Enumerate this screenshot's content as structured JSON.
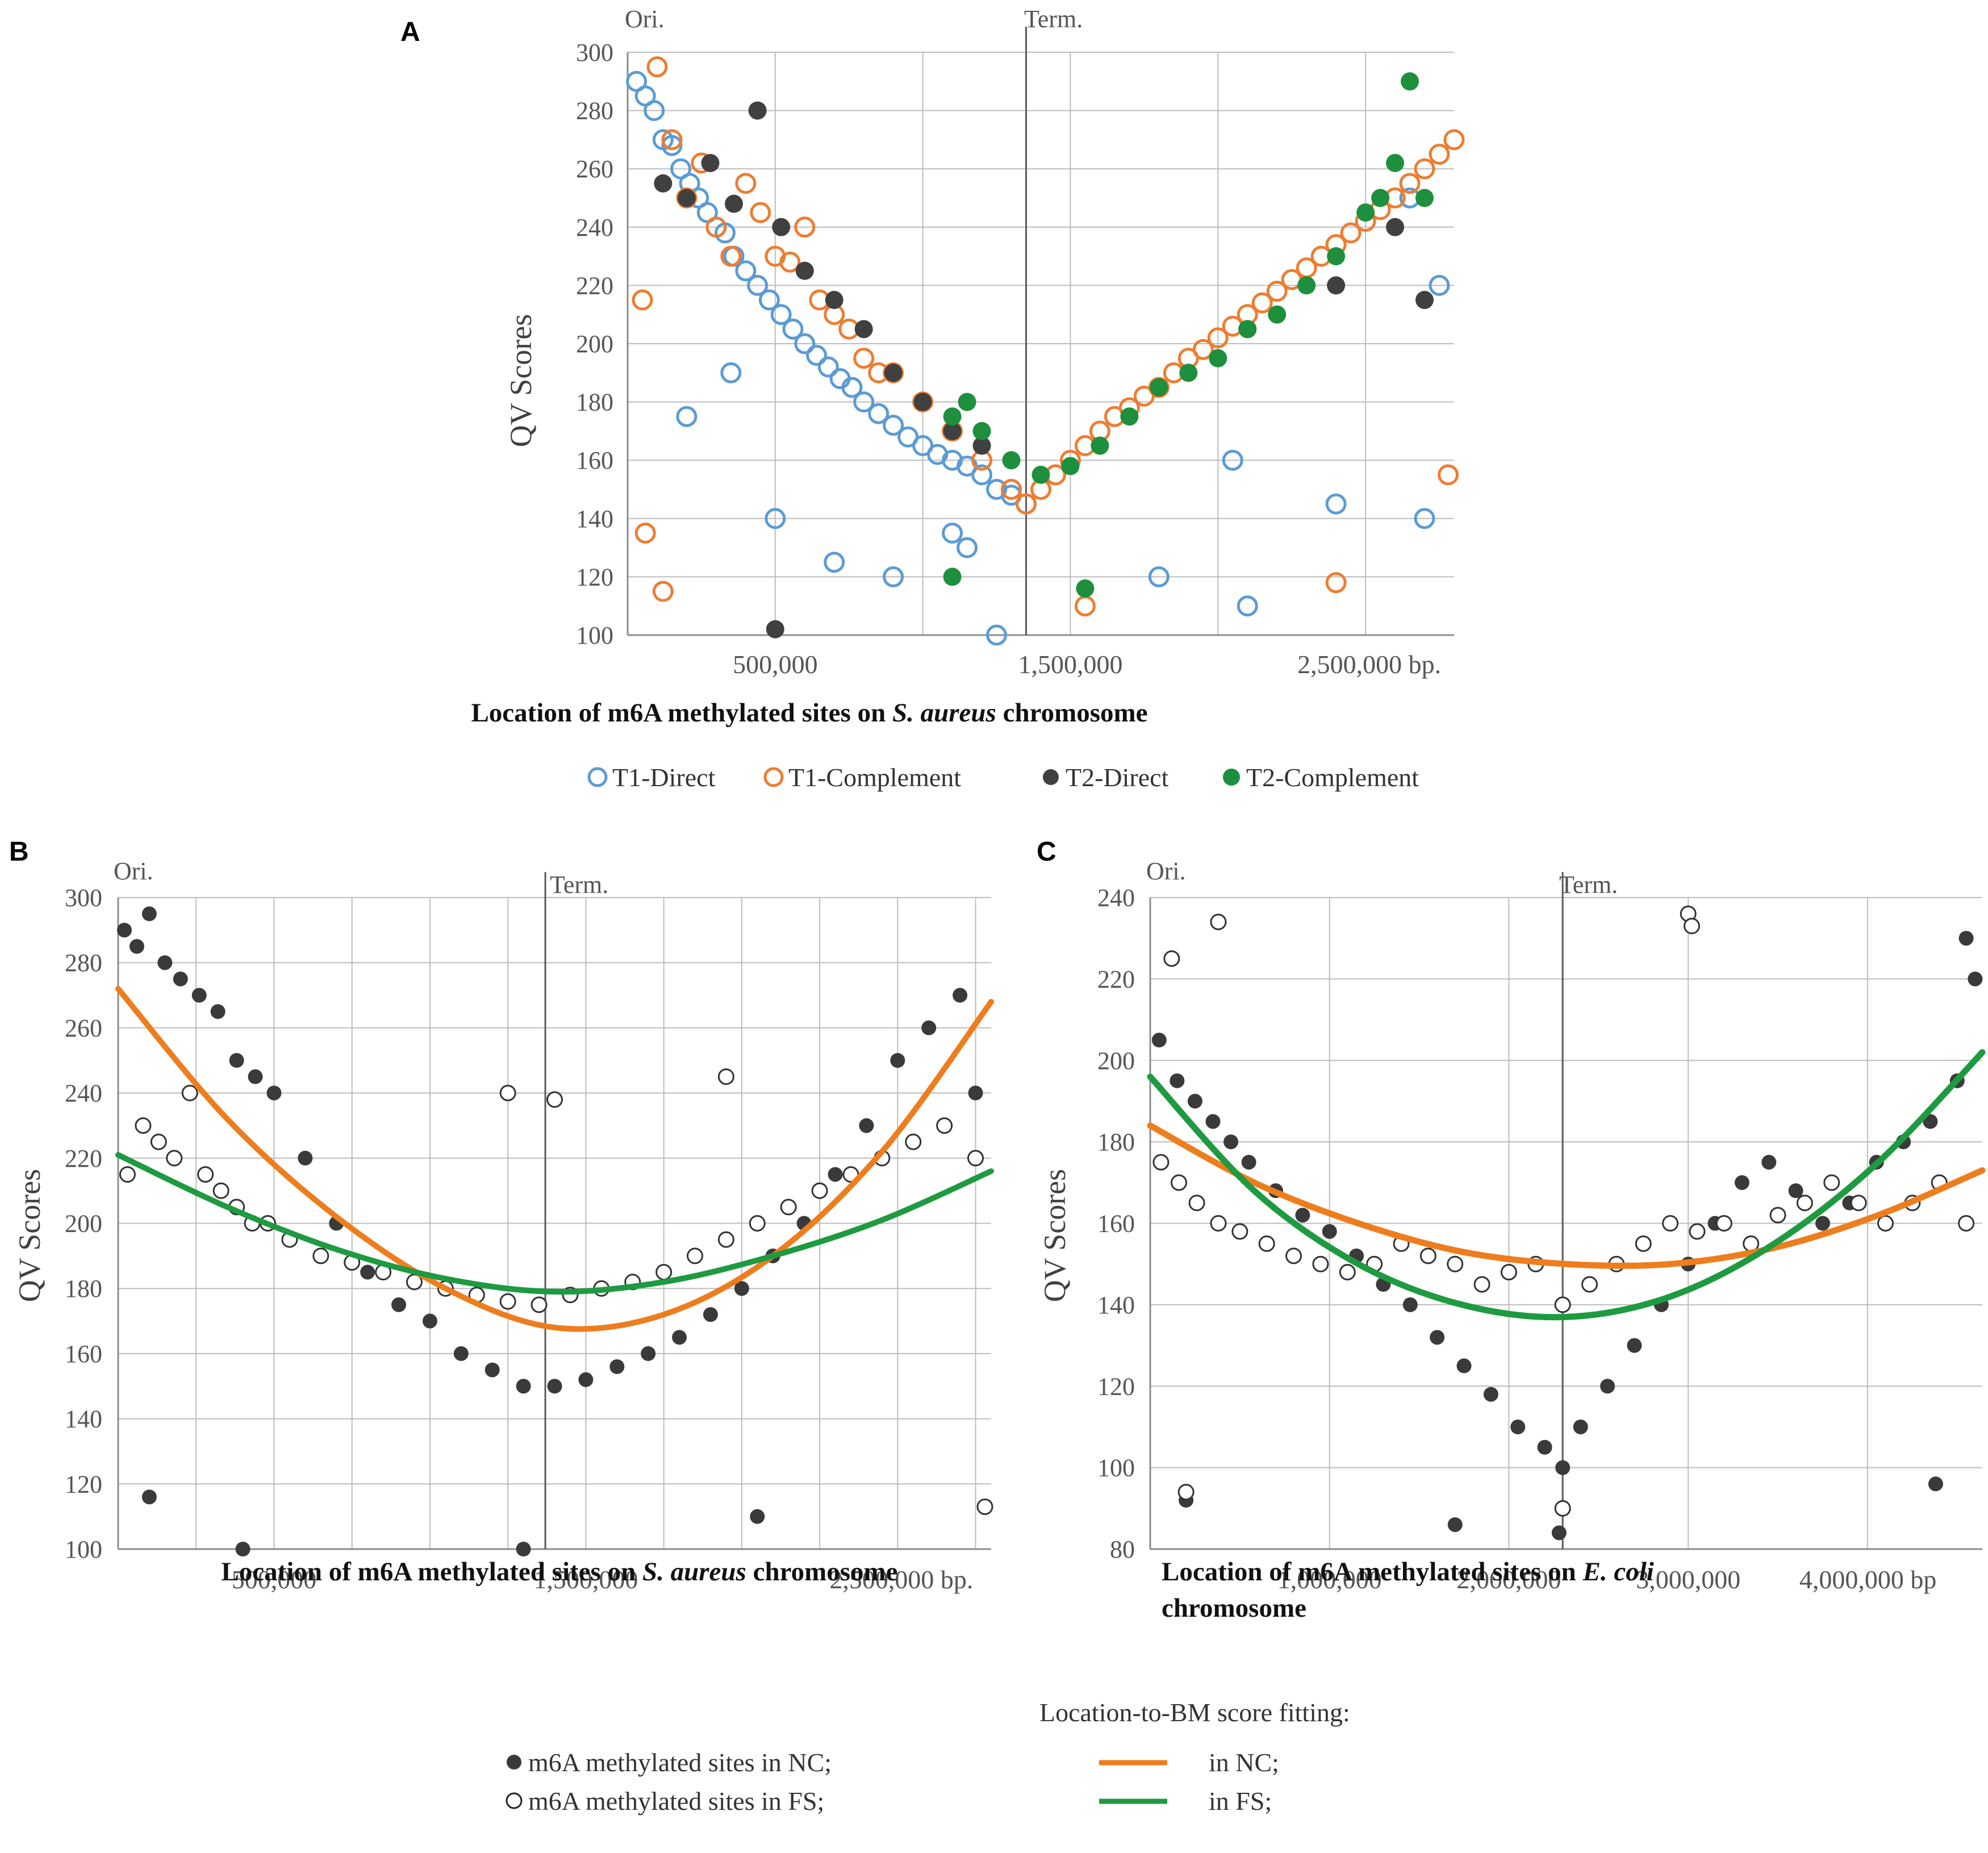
{
  "chart_data": [
    {
      "id": "A",
      "type": "scatter",
      "panel_label": "A",
      "ylabel": "QV Scores",
      "xlabel_parts": [
        "Location of m6A methylated sites on ",
        "S. aureus",
        " chromosome"
      ],
      "ylim": [
        100,
        300
      ],
      "yticks": [
        "100",
        "120",
        "140",
        "160",
        "180",
        "200",
        "220",
        "240",
        "260",
        "280",
        "300"
      ],
      "xlim": [
        0,
        2800000
      ],
      "xtick_values": [
        500000,
        1500000,
        2500000
      ],
      "xtick_labels": [
        "500,000",
        "1,500,000",
        "2,500,000 bp."
      ],
      "x_grid_step": 500000,
      "ori_label": "Ori.",
      "term_label": "Term.",
      "term_x": 1350000,
      "legend": [
        {
          "name": "T1-Direct",
          "style": "open",
          "color": "#5b9bd5"
        },
        {
          "name": "T1-Complement",
          "style": "open",
          "color": "#ed7d31"
        },
        {
          "name": "T2-Direct",
          "style": "filled",
          "color": "#404040"
        },
        {
          "name": "T2-Complement",
          "style": "filled",
          "color": "#1e8f3c"
        }
      ],
      "series": [
        {
          "name": "T1-Direct",
          "style": "open",
          "color": "#5b9bd5",
          "x": [
            30000,
            60000,
            90000,
            120000,
            150000,
            180000,
            210000,
            240000,
            270000,
            300000,
            330000,
            360000,
            400000,
            440000,
            480000,
            520000,
            560000,
            600000,
            640000,
            680000,
            720000,
            760000,
            800000,
            850000,
            900000,
            950000,
            1000000,
            1050000,
            1100000,
            1150000,
            1200000,
            1250000,
            1300000,
            1350000,
            200000,
            350000,
            500000,
            700000,
            900000,
            1100000,
            1250000,
            1800000,
            2100000,
            2400000,
            2700000,
            2750000,
            2650000,
            2050000,
            1450000,
            1150000
          ],
          "y": [
            290,
            285,
            280,
            270,
            268,
            260,
            255,
            250,
            245,
            240,
            238,
            230,
            225,
            220,
            215,
            210,
            205,
            200,
            196,
            192,
            188,
            185,
            180,
            176,
            172,
            168,
            165,
            162,
            160,
            158,
            155,
            150,
            148,
            145,
            175,
            190,
            140,
            125,
            120,
            135,
            100,
            120,
            110,
            145,
            140,
            220,
            250,
            160,
            155,
            130
          ]
        },
        {
          "name": "T1-Complement",
          "style": "open",
          "color": "#ed7d31",
          "x": [
            50000,
            100000,
            150000,
            200000,
            250000,
            300000,
            350000,
            400000,
            450000,
            500000,
            550000,
            600000,
            650000,
            700000,
            750000,
            800000,
            850000,
            900000,
            1000000,
            1100000,
            1200000,
            1300000,
            1350000,
            1400000,
            1450000,
            1500000,
            1550000,
            1600000,
            1650000,
            1700000,
            1750000,
            1800000,
            1850000,
            1900000,
            1950000,
            2000000,
            2050000,
            2100000,
            2150000,
            2200000,
            2250000,
            2300000,
            2350000,
            2400000,
            2450000,
            2500000,
            2550000,
            2600000,
            2650000,
            2700000,
            2750000,
            2800000,
            60000,
            120000,
            1550000,
            2400000,
            2780000
          ],
          "y": [
            215,
            295,
            270,
            250,
            262,
            240,
            230,
            255,
            245,
            230,
            228,
            240,
            215,
            210,
            205,
            195,
            190,
            190,
            180,
            170,
            160,
            150,
            145,
            150,
            155,
            160,
            165,
            170,
            175,
            178,
            182,
            185,
            190,
            195,
            198,
            202,
            206,
            210,
            214,
            218,
            222,
            226,
            230,
            234,
            238,
            242,
            246,
            250,
            255,
            260,
            265,
            270,
            135,
            115,
            110,
            118,
            155
          ]
        },
        {
          "name": "T2-Direct",
          "style": "filled",
          "color": "#404040",
          "x": [
            120000,
            200000,
            280000,
            360000,
            440000,
            520000,
            600000,
            700000,
            800000,
            900000,
            1000000,
            1100000,
            1200000,
            1800000,
            2100000,
            2400000,
            2600000,
            2700000,
            500000
          ],
          "y": [
            255,
            250,
            262,
            248,
            280,
            240,
            225,
            215,
            205,
            190,
            180,
            170,
            165,
            185,
            205,
            220,
            240,
            215,
            102
          ]
        },
        {
          "name": "T2-Complement",
          "style": "filled",
          "color": "#1e8f3c",
          "x": [
            1100000,
            1150000,
            1200000,
            1300000,
            1400000,
            1500000,
            1600000,
            1700000,
            1800000,
            1900000,
            2000000,
            2100000,
            2200000,
            2300000,
            2400000,
            2500000,
            2550000,
            2600000,
            2650000,
            2700000,
            1100000,
            1550000
          ],
          "y": [
            175,
            180,
            170,
            160,
            155,
            158,
            165,
            175,
            185,
            190,
            195,
            205,
            210,
            220,
            230,
            245,
            250,
            262,
            290,
            250,
            120,
            116
          ]
        }
      ]
    },
    {
      "id": "B",
      "type": "scatter",
      "panel_label": "B",
      "ylabel": "QV Scores",
      "xlabel_parts": [
        "Location of m6A methylated sites on ",
        "S. aureus",
        " chromosome"
      ],
      "ylim": [
        100,
        300
      ],
      "yticks": [
        "100",
        "120",
        "140",
        "160",
        "180",
        "200",
        "220",
        "240",
        "260",
        "280",
        "300"
      ],
      "xlim": [
        0,
        2800000
      ],
      "xtick_values": [
        500000,
        1500000,
        2500000
      ],
      "xtick_labels": [
        "500,000",
        "1,500,000",
        "2,500,000 bp."
      ],
      "x_grid_step": 250000,
      "ori_label": "Ori.",
      "term_label": "Term.",
      "term_x": 1370000,
      "series": [
        {
          "name": "m6A methylated sites in NC",
          "style": "filled",
          "color": "#3a3a3a",
          "x": [
            20000,
            60000,
            100000,
            150000,
            200000,
            260000,
            320000,
            380000,
            440000,
            500000,
            600000,
            700000,
            800000,
            900000,
            1000000,
            1100000,
            1200000,
            1300000,
            1400000,
            1500000,
            1600000,
            1700000,
            1800000,
            1900000,
            2000000,
            2100000,
            2200000,
            2300000,
            2400000,
            2500000,
            2600000,
            2700000,
            2750000,
            400000,
            1300000,
            2050000,
            100000
          ],
          "y": [
            290,
            285,
            295,
            280,
            275,
            270,
            265,
            250,
            245,
            240,
            220,
            200,
            185,
            175,
            170,
            160,
            155,
            150,
            150,
            152,
            156,
            160,
            165,
            172,
            180,
            190,
            200,
            215,
            230,
            250,
            260,
            270,
            240,
            100,
            100,
            110,
            116
          ]
        },
        {
          "name": "m6A methylated sites in FS",
          "style": "open",
          "color": "#333333",
          "x": [
            30000,
            80000,
            130000,
            180000,
            230000,
            280000,
            330000,
            380000,
            430000,
            480000,
            550000,
            650000,
            750000,
            850000,
            950000,
            1050000,
            1150000,
            1250000,
            1350000,
            1450000,
            1550000,
            1650000,
            1750000,
            1850000,
            1950000,
            2050000,
            2150000,
            2250000,
            2350000,
            2450000,
            2550000,
            2650000,
            2750000,
            1250000,
            1400000,
            1950000,
            2780000
          ],
          "y": [
            215,
            230,
            225,
            220,
            240,
            215,
            210,
            205,
            200,
            200,
            195,
            190,
            188,
            185,
            182,
            180,
            178,
            176,
            175,
            178,
            180,
            182,
            185,
            190,
            195,
            200,
            205,
            210,
            215,
            220,
            225,
            230,
            220,
            240,
            238,
            245,
            113
          ]
        }
      ],
      "fits": [
        {
          "name": "in NC",
          "color": "#ee7d1e",
          "x": [
            0,
            350000,
            700000,
            1050000,
            1400000,
            1750000,
            2100000,
            2450000,
            2800000
          ],
          "y": [
            272,
            232,
            202,
            180,
            168,
            172,
            190,
            222,
            268
          ]
        },
        {
          "name": "in FS",
          "color": "#1e9a40",
          "x": [
            0,
            350000,
            700000,
            1050000,
            1400000,
            1750000,
            2100000,
            2450000,
            2800000
          ],
          "y": [
            221,
            205,
            192,
            183,
            179,
            182,
            190,
            201,
            216
          ]
        }
      ]
    },
    {
      "id": "C",
      "type": "scatter",
      "panel_label": "C",
      "ylabel": "QV Scores",
      "xlabel_parts": [
        "Location of m6A methylated sites on ",
        "E. coli",
        " chromosome"
      ],
      "ylim": [
        80,
        240
      ],
      "yticks": [
        "80",
        "100",
        "120",
        "140",
        "160",
        "180",
        "200",
        "220",
        "240"
      ],
      "xlim": [
        0,
        4640000
      ],
      "xtick_values": [
        1000000,
        2000000,
        3000000,
        4000000
      ],
      "xtick_labels": [
        "1,000,000",
        "2,000,000",
        "3,000,000",
        "4,000,000 bp"
      ],
      "x_grid_step": 1000000,
      "ori_label": "Ori.",
      "term_label": "Term.",
      "term_x": 2300000,
      "series": [
        {
          "name": "m6A methylated sites in NC",
          "style": "filled",
          "color": "#3a3a3a",
          "x": [
            50000,
            150000,
            250000,
            350000,
            450000,
            550000,
            700000,
            850000,
            1000000,
            1150000,
            1300000,
            1450000,
            1600000,
            1750000,
            1900000,
            2050000,
            2200000,
            2300000,
            2400000,
            2550000,
            2700000,
            2850000,
            3000000,
            3150000,
            3300000,
            3450000,
            3600000,
            3750000,
            3900000,
            4050000,
            4200000,
            4350000,
            4500000,
            4600000,
            4550000,
            4380000,
            1700000,
            2280000,
            200000
          ],
          "y": [
            205,
            195,
            190,
            185,
            180,
            175,
            168,
            162,
            158,
            152,
            145,
            140,
            132,
            125,
            118,
            110,
            105,
            100,
            110,
            120,
            130,
            140,
            150,
            160,
            170,
            175,
            168,
            160,
            165,
            175,
            180,
            185,
            195,
            220,
            230,
            96,
            86,
            84,
            92
          ]
        },
        {
          "name": "m6A methylated sites in FS",
          "style": "open",
          "color": "#333333",
          "x": [
            60000,
            160000,
            260000,
            380000,
            500000,
            650000,
            800000,
            950000,
            1100000,
            1250000,
            1400000,
            1550000,
            1700000,
            1850000,
            2000000,
            2150000,
            2300000,
            2450000,
            2600000,
            2750000,
            2900000,
            3050000,
            3200000,
            3350000,
            3500000,
            3650000,
            3800000,
            3950000,
            4100000,
            4250000,
            4400000,
            4550000,
            3000000,
            3020000,
            380000,
            120000,
            200000,
            2300000
          ],
          "y": [
            175,
            170,
            165,
            160,
            158,
            155,
            152,
            150,
            148,
            150,
            155,
            152,
            150,
            145,
            148,
            150,
            140,
            145,
            150,
            155,
            160,
            158,
            160,
            155,
            162,
            165,
            170,
            165,
            160,
            165,
            170,
            160,
            236,
            233,
            234,
            225,
            94,
            90
          ]
        }
      ],
      "fits": [
        {
          "name": "in NC",
          "color": "#ee7d1e",
          "x": [
            0,
            580000,
            1160000,
            1740000,
            2320000,
            2900000,
            3480000,
            4060000,
            4640000
          ],
          "y": [
            184,
            170,
            160,
            153,
            150,
            150,
            154,
            162,
            173
          ]
        },
        {
          "name": "in FS",
          "color": "#1e9a40",
          "x": [
            0,
            580000,
            1160000,
            1740000,
            2320000,
            2900000,
            3480000,
            4060000,
            4640000
          ],
          "y": [
            196,
            168,
            150,
            140,
            137,
            142,
            155,
            175,
            202
          ]
        }
      ]
    }
  ],
  "legend_bottom": {
    "nc_label": "m6A methylated sites in NC;",
    "fs_label": "m6A methylated sites in FS;",
    "fit_title": "Location-to-BM score fitting:",
    "fit_nc_label": "in NC;",
    "fit_fs_label": "in FS;",
    "fit_nc_color": "#ee7d1e",
    "fit_fs_color": "#1e9a40"
  }
}
